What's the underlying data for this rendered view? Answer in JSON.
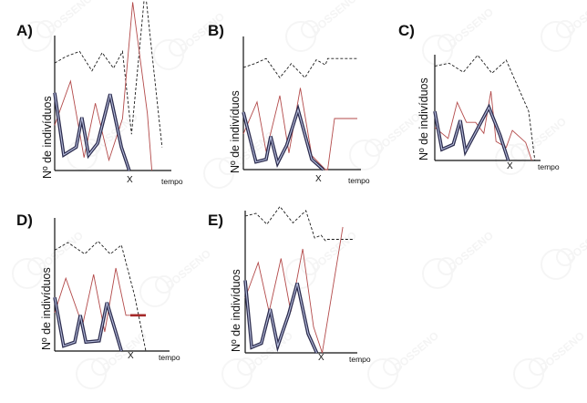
{
  "watermark_text": "COSSENO",
  "chart_data": [
    {
      "type": "line",
      "label": "A)",
      "ylabel": "Nº de indivíduos",
      "xlabel": "tempo",
      "x_marker": "X",
      "series": [
        {
          "style": "black-dashed",
          "points": [
            [
              0,
              83
            ],
            [
              10,
              88
            ],
            [
              22,
              92
            ],
            [
              33,
              77
            ],
            [
              42,
              91
            ],
            [
              52,
              79
            ],
            [
              60,
              92
            ],
            [
              68,
              28
            ],
            [
              80,
              140
            ],
            [
              95,
              18
            ]
          ]
        },
        {
          "style": "red-thin",
          "points": [
            [
              0,
              35
            ],
            [
              14,
              69
            ],
            [
              26,
              10
            ],
            [
              36,
              52
            ],
            [
              48,
              8
            ],
            [
              60,
              40
            ],
            [
              69,
              130
            ],
            [
              82,
              44
            ],
            [
              86,
              0
            ]
          ]
        },
        {
          "style": "blue-double",
          "points": [
            [
              0,
              60
            ],
            [
              8,
              12
            ],
            [
              19,
              18
            ],
            [
              24,
              41
            ],
            [
              30,
              12
            ],
            [
              38,
              21
            ],
            [
              49,
              59
            ],
            [
              59,
              18
            ],
            [
              66,
              0
            ]
          ]
        }
      ]
    },
    {
      "type": "line",
      "label": "B)",
      "ylabel": "Nº de indivíduos",
      "xlabel": "tempo",
      "x_marker": "X",
      "series": [
        {
          "style": "black-dashed",
          "points": [
            [
              0,
              80
            ],
            [
              10,
              83
            ],
            [
              20,
              87
            ],
            [
              32,
              72
            ],
            [
              42,
              83
            ],
            [
              54,
              72
            ],
            [
              64,
              86
            ],
            [
              72,
              82
            ],
            [
              74,
              87
            ],
            [
              100,
              87
            ]
          ]
        },
        {
          "style": "red-thin",
          "points": [
            [
              0,
              28
            ],
            [
              12,
              53
            ],
            [
              20,
              14
            ],
            [
              32,
              58
            ],
            [
              40,
              13
            ],
            [
              50,
              64
            ],
            [
              60,
              11
            ],
            [
              72,
              0
            ],
            [
              74,
              0
            ],
            [
              80,
              40
            ],
            [
              100,
              40
            ]
          ]
        },
        {
          "style": "blue-double",
          "points": [
            [
              0,
              45
            ],
            [
              11,
              6
            ],
            [
              20,
              8
            ],
            [
              24,
              26
            ],
            [
              30,
              5
            ],
            [
              38,
              19
            ],
            [
              48,
              47
            ],
            [
              60,
              8
            ],
            [
              70,
              0
            ]
          ]
        }
      ]
    },
    {
      "type": "line",
      "label": "C)",
      "ylabel": "Nº de indivíduos",
      "xlabel": "tempo",
      "x_marker": "X",
      "series": [
        {
          "style": "black-dashed",
          "points": [
            [
              0,
              94
            ],
            [
              14,
              97
            ],
            [
              28,
              88
            ],
            [
              42,
              105
            ],
            [
              56,
              87
            ],
            [
              70,
              100
            ],
            [
              92,
              49
            ],
            [
              98,
              0
            ]
          ]
        },
        {
          "style": "red-thin",
          "points": [
            [
              0,
              33
            ],
            [
              13,
              22
            ],
            [
              22,
              58
            ],
            [
              31,
              38
            ],
            [
              40,
              38
            ],
            [
              48,
              27
            ],
            [
              55,
              69
            ],
            [
              60,
              19
            ],
            [
              70,
              13
            ],
            [
              76,
              30
            ],
            [
              89,
              18
            ],
            [
              95,
              0
            ]
          ]
        },
        {
          "style": "blue-double",
          "points": [
            [
              0,
              49
            ],
            [
              7,
              11
            ],
            [
              18,
              16
            ],
            [
              25,
              40
            ],
            [
              30,
              9
            ],
            [
              40,
              28
            ],
            [
              53,
              53
            ],
            [
              64,
              25
            ],
            [
              72,
              0
            ]
          ]
        }
      ]
    },
    {
      "type": "line",
      "label": "D)",
      "ylabel": "Nº de indivíduos",
      "xlabel": "tempo",
      "x_marker": "X",
      "series": [
        {
          "style": "black-dashed",
          "points": [
            [
              0,
              79
            ],
            [
              12,
              85
            ],
            [
              27,
              76
            ],
            [
              39,
              86
            ],
            [
              50,
              76
            ],
            [
              60,
              83
            ],
            [
              72,
              43
            ],
            [
              82,
              0
            ]
          ]
        },
        {
          "style": "red-thin",
          "points": [
            [
              0,
              30
            ],
            [
              10,
              57
            ],
            [
              25,
              20
            ],
            [
              35,
              60
            ],
            [
              45,
              15
            ],
            [
              55,
              65
            ],
            [
              64,
              28
            ],
            [
              68,
              28
            ]
          ]
        },
        {
          "style": "red-thick",
          "points": [
            [
              68,
              28
            ],
            [
              82,
              28
            ]
          ]
        },
        {
          "style": "blue-double",
          "points": [
            [
              0,
              42
            ],
            [
              8,
              4
            ],
            [
              18,
              7
            ],
            [
              23,
              28
            ],
            [
              28,
              7
            ],
            [
              40,
              8
            ],
            [
              47,
              38
            ],
            [
              60,
              0
            ]
          ]
        }
      ]
    },
    {
      "type": "line",
      "label": "E)",
      "ylabel": "Nº de indivíduos",
      "xlabel": "tempo",
      "x_marker": "X",
      "series": [
        {
          "style": "black-dashed",
          "points": [
            [
              0,
              100
            ],
            [
              10,
              102
            ],
            [
              20,
              94
            ],
            [
              32,
              107
            ],
            [
              44,
              95
            ],
            [
              56,
              104
            ],
            [
              64,
              84
            ],
            [
              70,
              86
            ],
            [
              74,
              82
            ],
            [
              76,
              83
            ],
            [
              100,
              83
            ]
          ]
        },
        {
          "style": "red-thin",
          "points": [
            [
              0,
              40
            ],
            [
              12,
              66
            ],
            [
              22,
              30
            ],
            [
              33,
              69
            ],
            [
              42,
              30
            ],
            [
              53,
              76
            ],
            [
              63,
              19
            ],
            [
              71,
              0
            ],
            [
              90,
              92
            ]
          ]
        },
        {
          "style": "blue-double",
          "points": [
            [
              0,
              53
            ],
            [
              6,
              4
            ],
            [
              15,
              7
            ],
            [
              23,
              32
            ],
            [
              30,
              5
            ],
            [
              40,
              28
            ],
            [
              48,
              51
            ],
            [
              58,
              14
            ],
            [
              66,
              0
            ]
          ]
        }
      ]
    }
  ]
}
